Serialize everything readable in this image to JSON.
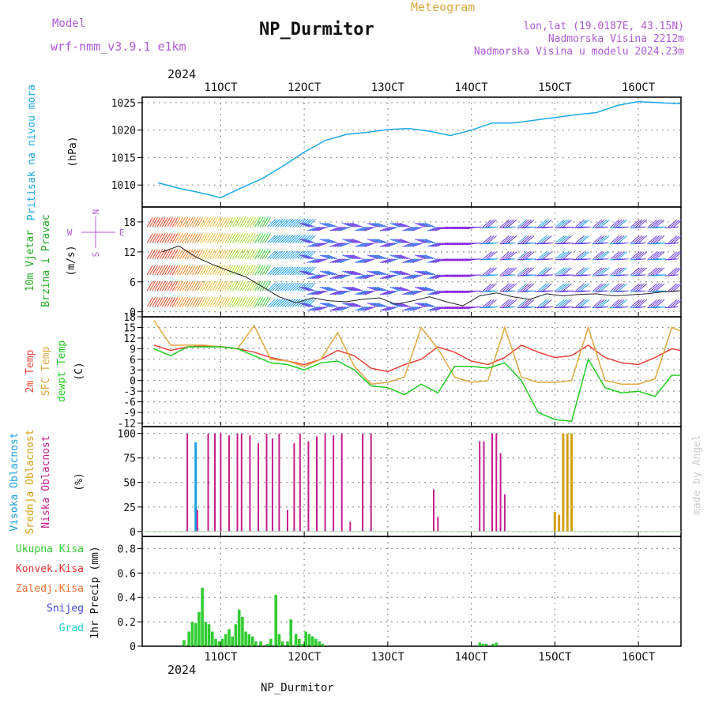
{
  "header": {
    "model_label": "Model",
    "model_name": "wrf-nmm_v3.9.1  e1km",
    "title": "NP_Durmitor",
    "subtitle": "Meteogram",
    "coords": "lon,lat (19.0187E, 43.15N)",
    "altitude": "Nadmorska Visina 2212m",
    "model_altitude": "Nadmorska Visina u modelu 2024.23m",
    "footer_name": "NP_Durmitor",
    "watermark": "made by Angel",
    "year_label": "2024"
  },
  "colors": {
    "pressure": "#1ca9e6",
    "temp2m": "#e8443a",
    "sfc_temp": "#e0a840",
    "dewpt": "#22cc22",
    "high_cloud": "#1a9fdf",
    "mid_cloud": "#d4a017",
    "low_cloud": "#c41e8c",
    "total_precip": "#33cc33",
    "conv_precip": "#ee3333",
    "freezing_precip": "#f07030",
    "snow": "#4444dd",
    "hail": "#22cccc",
    "model_text": "#b05ad8",
    "title_text": "#111111"
  },
  "x_ticks": [
    "11OCT",
    "12OCT",
    "13OCT",
    "14OCT",
    "15OCT",
    "16OCT"
  ],
  "chart_data": [
    {
      "type": "line",
      "panel": "pressure",
      "ylabel": "(hPa)",
      "side_label": "Pritisak na nivou mora",
      "ylim": [
        1006,
        1026
      ],
      "yticks": [
        1010,
        1015,
        1020,
        1025
      ],
      "x_unit": "day of October 2024",
      "series": [
        {
          "x": [
            10.25,
            10.5,
            10.75,
            11.0,
            11.25,
            11.5,
            11.75,
            12.0,
            12.25,
            12.5,
            12.75,
            13.0,
            13.25,
            13.5,
            13.75,
            14.0,
            14.25,
            14.5,
            14.75,
            15.0,
            15.25,
            15.5,
            15.75,
            16.0,
            16.25,
            16.5
          ],
          "y": [
            1010.4,
            1009.4,
            1008.6,
            1007.7,
            1009.5,
            1011.2,
            1013.5,
            1016.0,
            1018.1,
            1019.2,
            1019.6,
            1020.1,
            1020.3,
            1019.8,
            1019.0,
            1020.0,
            1021.3,
            1021.3,
            1021.8,
            1022.3,
            1022.8,
            1023.2,
            1024.5,
            1025.2,
            1025.0,
            1024.8
          ]
        }
      ]
    },
    {
      "type": "line",
      "panel": "wind",
      "ylabel": "(m/s)",
      "side_label": [
        "10m Vjetar",
        "Brzina i Pravac"
      ],
      "compass": {
        "n": "N",
        "s": "S",
        "w": "W",
        "e": "E"
      },
      "ylim": [
        -1,
        21
      ],
      "yticks": [
        0,
        6,
        12,
        18
      ],
      "series": [
        {
          "name": "wind speed",
          "x": [
            10.3,
            10.5,
            10.7,
            10.9,
            11.1,
            11.3,
            11.5,
            11.7,
            11.9,
            12.1,
            12.3,
            12.5,
            12.7,
            12.9,
            13.1,
            13.3,
            13.5,
            13.7,
            13.9,
            14.1,
            14.3,
            14.5,
            14.7,
            14.9,
            15.1,
            15.3,
            15.5,
            15.7,
            15.9,
            16.1,
            16.3,
            16.5
          ],
          "y": [
            12.0,
            13.2,
            11.0,
            9.5,
            8.2,
            7.0,
            5.0,
            3.0,
            1.8,
            2.8,
            2.2,
            2.0,
            2.5,
            2.8,
            1.5,
            2.2,
            3.0,
            2.0,
            1.2,
            3.2,
            3.8,
            3.0,
            2.5,
            3.6,
            3.2,
            3.5,
            3.6,
            3.2,
            3.4,
            3.6,
            4.0,
            4.2
          ]
        }
      ]
    },
    {
      "type": "line",
      "panel": "temperature",
      "ylabel": "(C)",
      "side_labels": [
        "2m Temp",
        "SFC Temp",
        "dewpt Temp"
      ],
      "ylim": [
        -13,
        18
      ],
      "yticks": [
        -12,
        -9,
        -6,
        -3,
        0,
        3,
        6,
        9,
        12,
        15,
        18
      ],
      "series": [
        {
          "name": "2m Temp",
          "x": [
            10.2,
            10.4,
            10.6,
            10.8,
            11.0,
            11.2,
            11.4,
            11.6,
            11.8,
            12.0,
            12.2,
            12.4,
            12.6,
            12.8,
            13.0,
            13.2,
            13.4,
            13.6,
            13.8,
            14.0,
            14.2,
            14.4,
            14.6,
            14.8,
            15.0,
            15.2,
            15.4,
            15.6,
            15.8,
            16.0,
            16.2,
            16.4,
            16.5
          ],
          "y": [
            10.0,
            8.5,
            9.5,
            9.8,
            9.6,
            9.0,
            8.0,
            6.5,
            5.5,
            4.5,
            6.0,
            8.5,
            7.0,
            3.5,
            2.5,
            4.5,
            6.0,
            9.5,
            8.0,
            5.5,
            4.5,
            6.5,
            10.0,
            8.0,
            6.5,
            7.0,
            10.0,
            6.5,
            5.0,
            4.5,
            6.5,
            9.0,
            8.5
          ]
        },
        {
          "name": "SFC Temp",
          "x": [
            10.2,
            10.4,
            10.6,
            10.8,
            11.0,
            11.2,
            11.4,
            11.6,
            11.8,
            12.0,
            12.2,
            12.4,
            12.6,
            12.8,
            13.0,
            13.2,
            13.4,
            13.6,
            13.8,
            14.0,
            14.2,
            14.4,
            14.6,
            14.8,
            15.0,
            15.2,
            15.4,
            15.6,
            15.8,
            16.0,
            16.2,
            16.4,
            16.5
          ],
          "y": [
            17.0,
            10.0,
            10.0,
            10.0,
            9.5,
            9.0,
            15.5,
            6.0,
            5.5,
            4.0,
            6.0,
            13.5,
            4.0,
            -1.0,
            -0.5,
            1.0,
            15.0,
            9.0,
            1.0,
            -0.5,
            0.0,
            15.0,
            1.0,
            -0.5,
            -0.5,
            0.0,
            15.0,
            0.0,
            -1.0,
            -1.0,
            0.5,
            15.0,
            14.0
          ]
        },
        {
          "name": "dewpt Temp",
          "x": [
            10.2,
            10.4,
            10.6,
            10.8,
            11.0,
            11.2,
            11.4,
            11.6,
            11.8,
            12.0,
            12.2,
            12.4,
            12.6,
            12.8,
            13.0,
            13.2,
            13.4,
            13.6,
            13.8,
            14.0,
            14.2,
            14.4,
            14.6,
            14.8,
            15.0,
            15.2,
            15.4,
            15.6,
            15.8,
            16.0,
            16.2,
            16.4,
            16.5
          ],
          "y": [
            9.0,
            7.0,
            9.5,
            9.5,
            9.5,
            9.0,
            7.0,
            5.0,
            4.5,
            3.0,
            5.0,
            5.5,
            3.0,
            -1.5,
            -2.0,
            -4.0,
            -1.0,
            -3.5,
            4.0,
            4.0,
            3.5,
            5.0,
            0.0,
            -9.0,
            -11.0,
            -11.5,
            6.0,
            -2.0,
            -3.5,
            -3.0,
            -4.5,
            1.5,
            1.5
          ]
        }
      ]
    },
    {
      "type": "bar",
      "panel": "cloud",
      "ylabel": "(%)",
      "side_labels": [
        "Visoka Oblacnost",
        "Srednja Oblacnost",
        "Niska Oblacnost"
      ],
      "ylim": [
        -5,
        107
      ],
      "yticks": [
        0,
        25,
        50,
        75,
        100
      ],
      "series": [
        {
          "name": "Visoka Oblacnost",
          "x": [
            10.7
          ],
          "y": [
            91
          ]
        },
        {
          "name": "Srednja Oblacnost",
          "x": [
            15.0,
            15.05,
            15.1,
            15.15,
            15.2
          ],
          "y": [
            20,
            17,
            100,
            100,
            100
          ]
        },
        {
          "name": "Niska Oblacnost",
          "x": [
            10.6,
            10.72,
            10.85,
            10.93,
            11.0,
            11.1,
            11.2,
            11.25,
            11.35,
            11.45,
            11.55,
            11.62,
            11.7,
            11.8,
            11.88,
            11.95,
            12.05,
            12.15,
            12.25,
            12.35,
            12.45,
            12.55,
            12.7,
            12.8,
            13.55,
            13.6,
            14.1,
            14.15,
            14.25,
            14.3,
            14.35,
            14.4
          ],
          "y": [
            100,
            22,
            100,
            100,
            100,
            98,
            100,
            100,
            98,
            90,
            100,
            95,
            100,
            22,
            90,
            100,
            92,
            97,
            100,
            98,
            100,
            10,
            100,
            100,
            43,
            15,
            92,
            92,
            100,
            100,
            80,
            38
          ]
        }
      ]
    },
    {
      "type": "bar",
      "panel": "precip",
      "ylabel": "1hr Precip (mm)",
      "side_labels": [
        "Ukupna Kisa",
        "Konvek.Kisa",
        "Zaledj.Kisa",
        "Snijeg",
        "Grad"
      ],
      "ylim": [
        0,
        0.9
      ],
      "yticks": [
        0,
        0.2,
        0.4,
        0.6,
        0.8
      ],
      "series": [
        {
          "name": "Ukupna Kisa",
          "x": [
            10.56,
            10.62,
            10.66,
            10.7,
            10.74,
            10.78,
            10.82,
            10.86,
            10.9,
            10.94,
            10.98,
            11.02,
            11.06,
            11.1,
            11.14,
            11.18,
            11.22,
            11.26,
            11.3,
            11.34,
            11.38,
            11.42,
            11.48,
            11.56,
            11.6,
            11.66,
            11.7,
            11.74,
            11.8,
            11.84,
            11.9,
            11.94,
            11.98,
            12.02,
            12.06,
            12.1,
            12.14,
            12.18,
            12.22,
            14.1,
            14.14,
            14.18,
            14.26,
            14.3
          ],
          "y": [
            0.05,
            0.12,
            0.2,
            0.19,
            0.28,
            0.48,
            0.2,
            0.18,
            0.12,
            0.06,
            0.04,
            0.06,
            0.1,
            0.14,
            0.08,
            0.18,
            0.3,
            0.24,
            0.12,
            0.1,
            0.08,
            0.04,
            0.04,
            0.02,
            0.06,
            0.42,
            0.1,
            0.04,
            0.04,
            0.22,
            0.1,
            0.06,
            0.02,
            0.12,
            0.1,
            0.08,
            0.06,
            0.04,
            0.02,
            0.03,
            0.02,
            0.02,
            0.02,
            0.03
          ]
        }
      ]
    }
  ]
}
